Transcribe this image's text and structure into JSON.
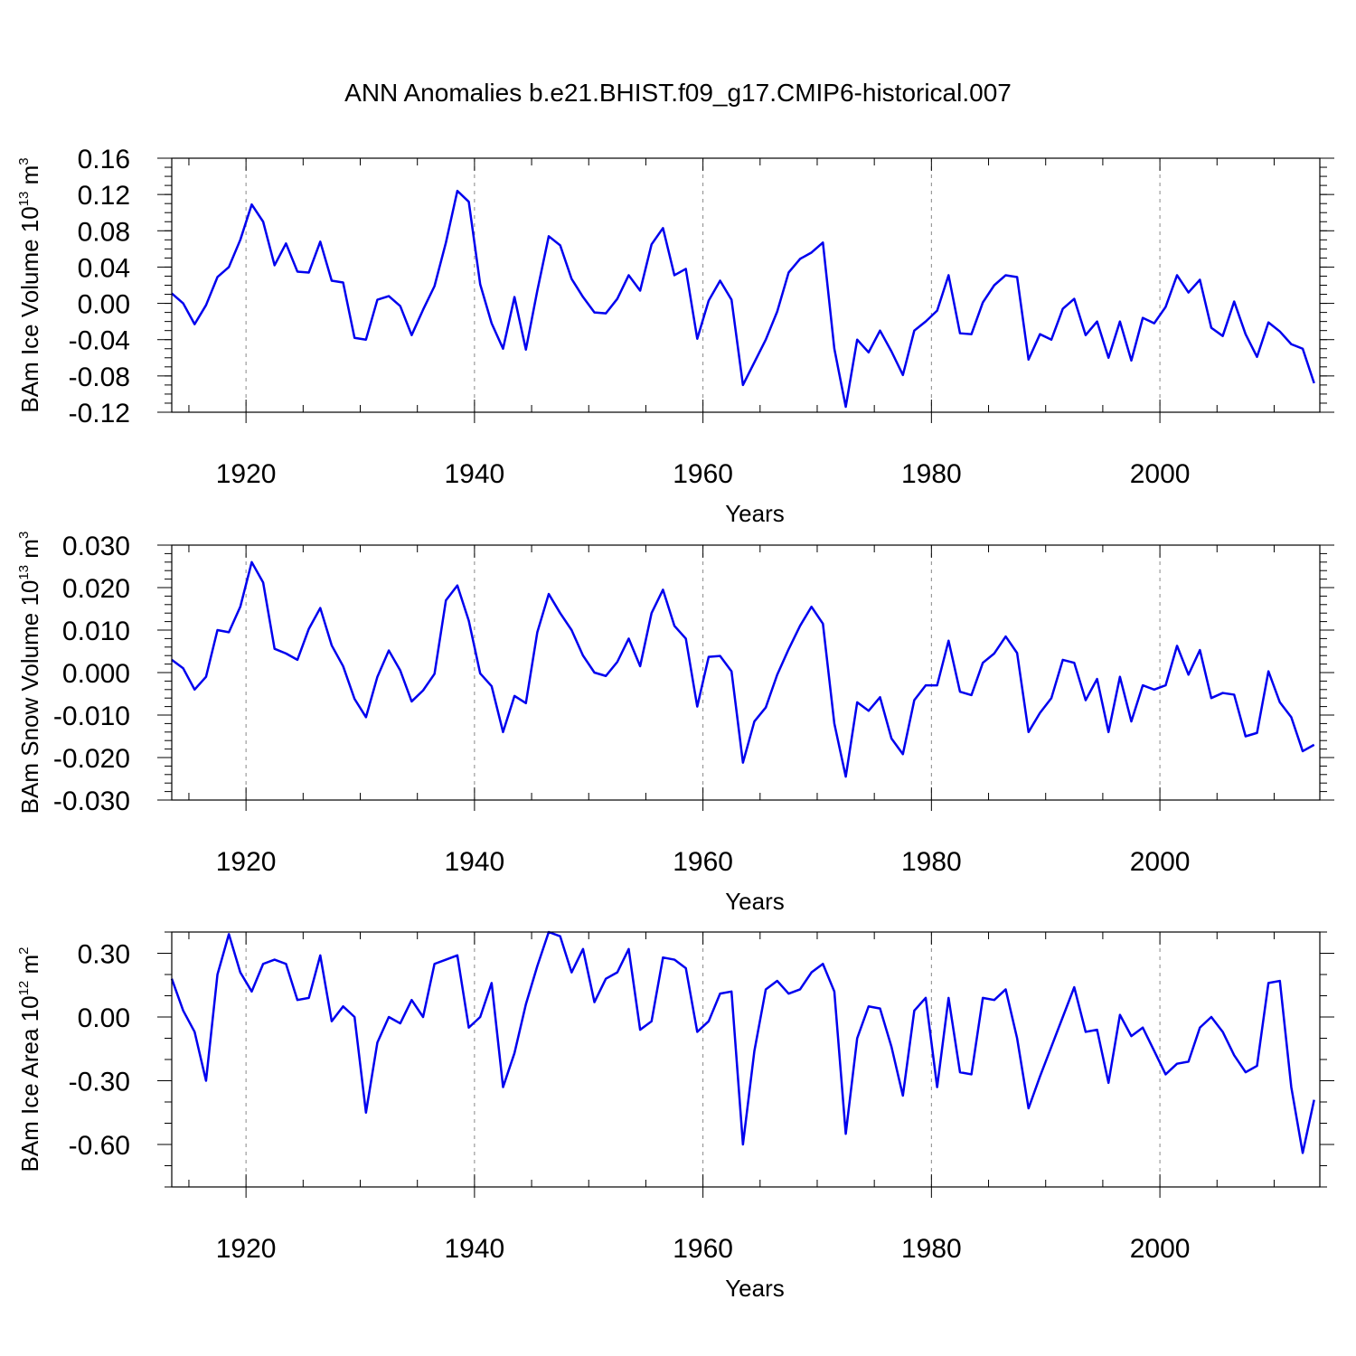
{
  "title": "ANN Anomalies b.e21.BHIST.f09_g17.CMIP6-historical.007",
  "colors": {
    "line": "#0000ee",
    "axis": "#000000",
    "grid": "#888888"
  },
  "chart_data": [
    {
      "type": "line",
      "ylabel_main": "BAm Ice Volume 10",
      "ylabel_exp": "13",
      "ylabel_unit": " m",
      "ylabel_unit_exp": "3",
      "xlabel": "Years",
      "xlim": [
        1913.5,
        2014
      ],
      "ylim": [
        -0.12,
        0.16
      ],
      "ymajor": [
        -0.12,
        -0.08,
        -0.04,
        0.0,
        0.04,
        0.08,
        0.12,
        0.16
      ],
      "ytick_labels": [
        "-0.12",
        "-0.08",
        "-0.04",
        "0.00",
        "0.04",
        "0.08",
        "0.12",
        "0.16"
      ],
      "yminor_step": 0.01,
      "xticks": [
        1920,
        1940,
        1960,
        1980,
        2000
      ],
      "xtick_labels": [
        "1920",
        "1940",
        "1960",
        "1980",
        "2000"
      ],
      "x_start": 1913.5,
      "x_step": 1,
      "values": [
        0.011,
        0.0,
        -0.023,
        -0.002,
        0.029,
        0.04,
        0.07,
        0.109,
        0.09,
        0.042,
        0.066,
        0.035,
        0.034,
        0.068,
        0.025,
        0.023,
        -0.038,
        -0.04,
        0.004,
        0.008,
        -0.003,
        -0.035,
        -0.007,
        0.019,
        0.067,
        0.124,
        0.112,
        0.021,
        -0.022,
        -0.05,
        0.007,
        -0.051,
        0.014,
        0.074,
        0.064,
        0.027,
        0.007,
        -0.01,
        -0.011,
        0.005,
        0.031,
        0.014,
        0.065,
        0.083,
        0.031,
        0.038,
        -0.039,
        0.003,
        0.025,
        0.004,
        -0.09,
        -0.065,
        -0.04,
        -0.009,
        0.034,
        0.049,
        0.056,
        0.067,
        -0.05,
        -0.114,
        -0.04,
        -0.054,
        -0.03,
        -0.053,
        -0.079,
        -0.03,
        -0.02,
        -0.008,
        0.031,
        -0.033,
        -0.034,
        0.001,
        0.02,
        0.031,
        0.029,
        -0.062,
        -0.034,
        -0.04,
        -0.006,
        0.005,
        -0.035,
        -0.02,
        -0.06,
        -0.02,
        -0.063,
        -0.016,
        -0.022,
        -0.004,
        0.031,
        0.012,
        0.026,
        -0.027,
        -0.036,
        0.002,
        -0.034,
        -0.059,
        -0.021,
        -0.031,
        -0.045,
        -0.05,
        -0.088
      ]
    },
    {
      "type": "line",
      "ylabel_main": "BAm Snow Volume 10",
      "ylabel_exp": "13",
      "ylabel_unit": " m",
      "ylabel_unit_exp": "3",
      "xlabel": "Years",
      "xlim": [
        1913.5,
        2014
      ],
      "ylim": [
        -0.03,
        0.03
      ],
      "ymajor": [
        -0.03,
        -0.02,
        -0.01,
        0.0,
        0.01,
        0.02,
        0.03
      ],
      "ytick_labels": [
        "-0.030",
        "-0.020",
        "-0.010",
        "0.000",
        "0.010",
        "0.020",
        "0.030"
      ],
      "yminor_step": 0.002,
      "xticks": [
        1920,
        1940,
        1960,
        1980,
        2000
      ],
      "xtick_labels": [
        "1920",
        "1940",
        "1960",
        "1980",
        "2000"
      ],
      "x_start": 1913.5,
      "x_step": 1,
      "values": [
        0.003,
        0.001,
        -0.004,
        -0.001,
        0.01,
        0.0095,
        0.0155,
        0.026,
        0.0212,
        0.0056,
        0.0045,
        0.003,
        0.0103,
        0.0152,
        0.0064,
        0.0015,
        -0.0062,
        -0.0105,
        -0.001,
        0.0052,
        0.0005,
        -0.0068,
        -0.0042,
        -0.0003,
        0.017,
        0.0205,
        0.0122,
        -0.0002,
        -0.0032,
        -0.014,
        -0.0055,
        -0.0072,
        0.0095,
        0.0185,
        0.014,
        0.01,
        0.004,
        0.0,
        -0.0008,
        0.0025,
        0.008,
        0.0015,
        0.014,
        0.0195,
        0.011,
        0.008,
        -0.008,
        0.0037,
        0.0039,
        0.0003,
        -0.0212,
        -0.0115,
        -0.0082,
        -0.0005,
        0.0055,
        0.011,
        0.0155,
        0.0115,
        -0.012,
        -0.0245,
        -0.007,
        -0.009,
        -0.0058,
        -0.0155,
        -0.0192,
        -0.0065,
        -0.003,
        -0.003,
        0.0075,
        -0.0045,
        -0.0053,
        0.0023,
        0.0045,
        0.0085,
        0.0046,
        -0.014,
        -0.0095,
        -0.006,
        0.003,
        0.0023,
        -0.0065,
        -0.0015,
        -0.014,
        -0.001,
        -0.0115,
        -0.003,
        -0.004,
        -0.003,
        0.0063,
        -0.0005,
        0.0053,
        -0.006,
        -0.0048,
        -0.0052,
        -0.015,
        -0.0142,
        0.0003,
        -0.007,
        -0.0105,
        -0.0185,
        -0.017
      ]
    },
    {
      "type": "line",
      "ylabel_main": "BAm Ice Area 10",
      "ylabel_exp": "12",
      "ylabel_unit": " m",
      "ylabel_unit_exp": "2",
      "xlabel": "Years",
      "xlim": [
        1913.5,
        2014
      ],
      "ylim": [
        -0.8,
        0.4
      ],
      "ymajor": [
        -0.6,
        -0.3,
        0.0,
        0.3
      ],
      "ytick_labels": [
        "-0.60",
        "-0.30",
        "0.00",
        "0.30"
      ],
      "yminor_step": 0.1,
      "xticks": [
        1920,
        1940,
        1960,
        1980,
        2000
      ],
      "xtick_labels": [
        "1920",
        "1940",
        "1960",
        "1980",
        "2000"
      ],
      "x_start": 1913.5,
      "x_step": 1,
      "values": [
        0.18,
        0.03,
        -0.07,
        -0.3,
        0.2,
        0.39,
        0.21,
        0.12,
        0.25,
        0.27,
        0.25,
        0.08,
        0.09,
        0.29,
        -0.02,
        0.05,
        0.0,
        -0.45,
        -0.12,
        0.0,
        -0.03,
        0.08,
        0.0,
        0.25,
        0.27,
        0.29,
        -0.05,
        0.0,
        0.16,
        -0.33,
        -0.17,
        0.06,
        0.24,
        0.4,
        0.38,
        0.21,
        0.32,
        0.07,
        0.18,
        0.21,
        0.32,
        -0.06,
        -0.02,
        0.28,
        0.27,
        0.23,
        -0.07,
        -0.02,
        0.11,
        0.12,
        -0.6,
        -0.16,
        0.13,
        0.17,
        0.11,
        0.13,
        0.21,
        0.25,
        0.12,
        -0.55,
        -0.1,
        0.05,
        0.04,
        -0.14,
        -0.37,
        0.03,
        0.09,
        -0.33,
        0.09,
        -0.26,
        -0.27,
        0.09,
        0.08,
        0.13,
        -0.1,
        -0.43,
        -0.28,
        -0.14,
        0.0,
        0.14,
        -0.07,
        -0.06,
        -0.31,
        0.01,
        -0.09,
        -0.05,
        -0.16,
        -0.27,
        -0.22,
        -0.21,
        -0.05,
        0.0,
        -0.07,
        -0.18,
        -0.26,
        -0.23,
        0.16,
        0.17,
        -0.33,
        -0.64,
        -0.39
      ]
    }
  ]
}
